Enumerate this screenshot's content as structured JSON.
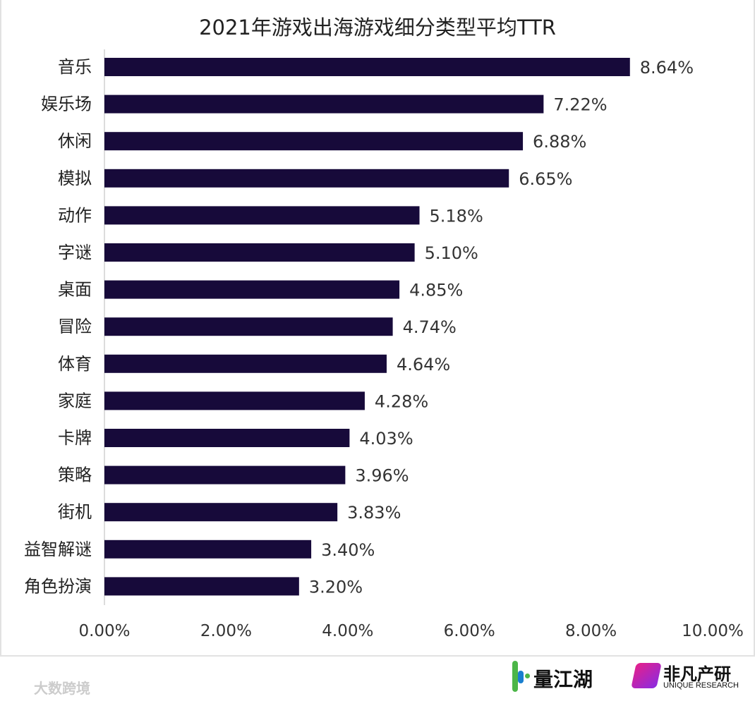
{
  "chart_data": {
    "type": "bar",
    "orientation": "horizontal",
    "title": "2021年游戏出海游戏细分类型平均TTR",
    "categories": [
      "音乐",
      "娱乐场",
      "休闲",
      "模拟",
      "动作",
      "字谜",
      "桌面",
      "冒险",
      "体育",
      "家庭",
      "卡牌",
      "策略",
      "街机",
      "益智解谜",
      "角色扮演"
    ],
    "values": [
      8.64,
      7.22,
      6.88,
      6.65,
      5.18,
      5.1,
      4.85,
      4.74,
      4.64,
      4.28,
      4.03,
      3.96,
      3.83,
      3.4,
      3.2
    ],
    "data_labels": [
      "8.64%",
      "7.22%",
      "6.88%",
      "6.65%",
      "5.18%",
      "5.10%",
      "4.85%",
      "4.74%",
      "4.64%",
      "4.28%",
      "4.03%",
      "3.96%",
      "3.83%",
      "3.40%",
      "3.20%"
    ],
    "xlim": [
      0,
      10
    ],
    "xticks": [
      "0.00%",
      "2.00%",
      "4.00%",
      "6.00%",
      "8.00%",
      "10.00%"
    ],
    "grid": false,
    "bar_color": "#170a3a"
  },
  "watermark": "大数跨境",
  "logos": {
    "left": "量江湖",
    "right": "非凡产研",
    "right_sub": "UNIQUE RESEARCH"
  }
}
